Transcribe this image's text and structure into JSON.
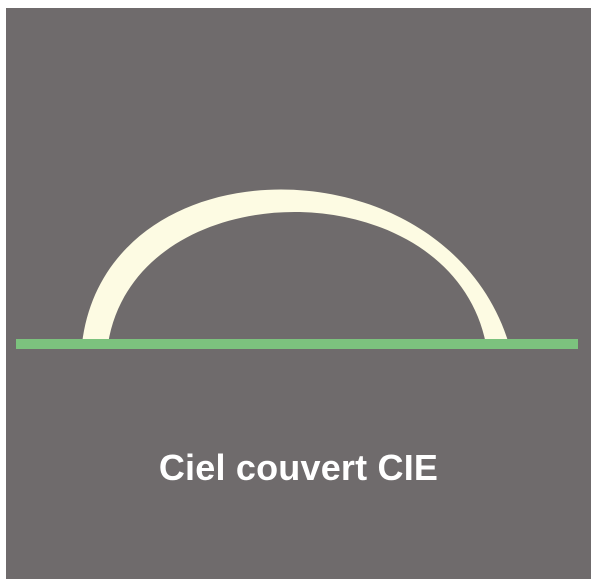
{
  "caption": "Ciel couvert CIE",
  "colors": {
    "background": "#6f6b6c",
    "sky_dome": "#fdfbe3",
    "ground_line": "#7cc27e",
    "caption_text": "#ffffff"
  }
}
